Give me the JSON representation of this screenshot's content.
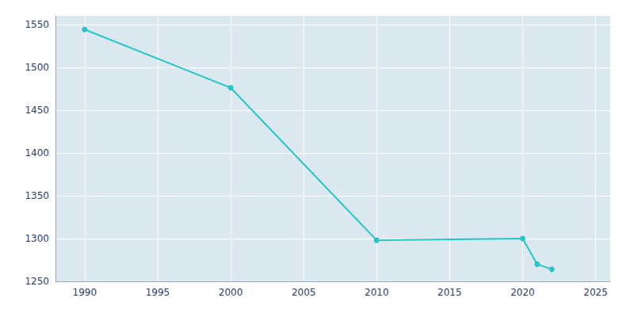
{
  "chart_data": {
    "type": "line",
    "x": [
      1990,
      2000,
      2010,
      2020,
      2021,
      2022
    ],
    "values": [
      1544,
      1476,
      1298,
      1300,
      1270,
      1264
    ],
    "color": "#26C6C6",
    "marker": "circle",
    "xlim": [
      1988,
      2026
    ],
    "ylim": [
      1250,
      1560
    ],
    "xticks": [
      1990,
      1995,
      2000,
      2005,
      2010,
      2015,
      2020,
      2025
    ],
    "yticks": [
      1250,
      1300,
      1350,
      1400,
      1450,
      1500,
      1550
    ],
    "grid": true
  }
}
